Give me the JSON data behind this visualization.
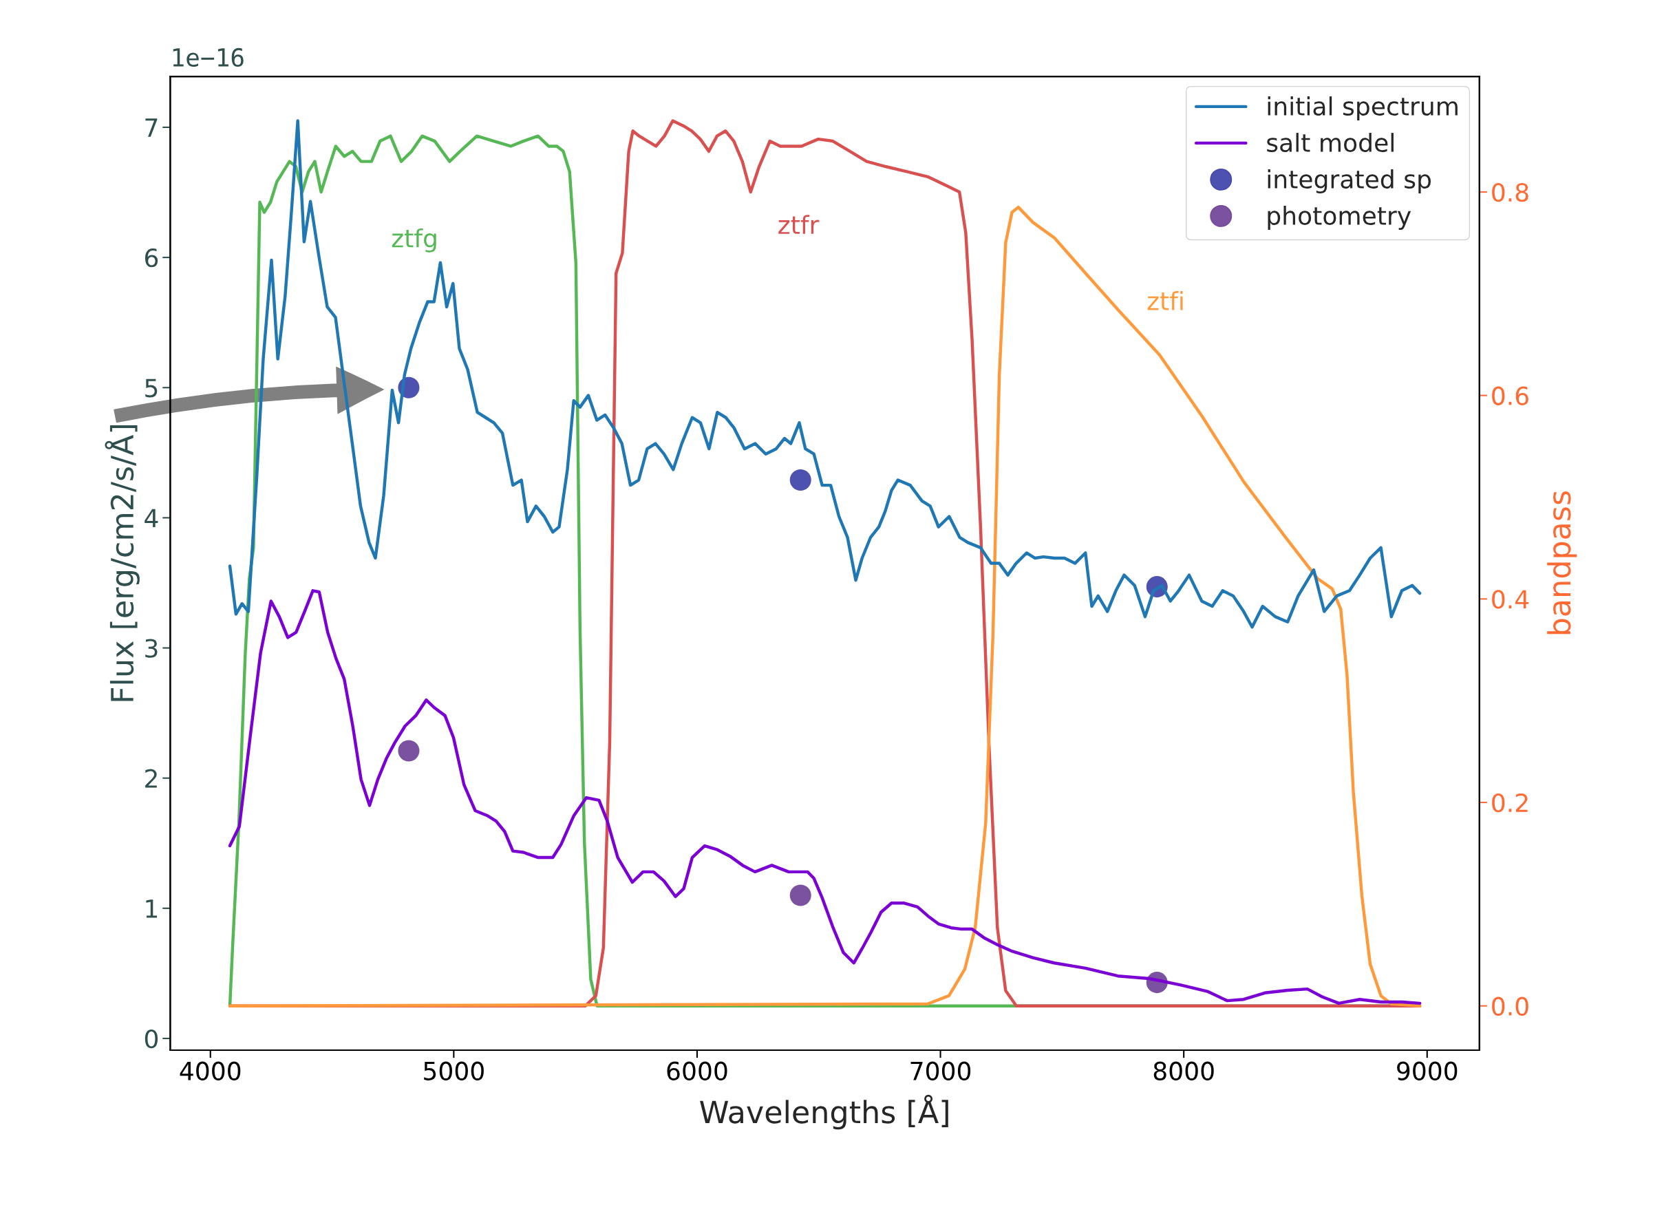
{
  "chart_data": {
    "type": "line",
    "xlabel": "Wavelengths [Å]",
    "ylabel": "Flux [erg/cm2/s/Å]",
    "y2label": "bandpass",
    "xlim": [
      3835,
      9215
    ],
    "xticks": [
      4000,
      5000,
      6000,
      7000,
      8000,
      9000
    ],
    "ylim": [
      -0.09,
      7.39
    ],
    "yticks": [
      0,
      1,
      2,
      3,
      4,
      5,
      6,
      7
    ],
    "y2lim": [
      -0.0435,
      0.9135
    ],
    "y2ticks": [
      {
        "value": 0,
        "label": "0.0"
      },
      0.2,
      0.4,
      0.6,
      0.8
    ],
    "legend": "top right",
    "marker": "none",
    "line_style": "solid",
    "annotations": [
      "1e−16"
    ],
    "series": [
      {
        "name": "initial spectrum",
        "color": "#1f77b4",
        "x": [
          4080,
          4105,
          4130,
          4156,
          4191,
          4217,
          4251,
          4277,
          4307,
          4333,
          4359,
          4385,
          4411,
          4445,
          4480,
          4514,
          4548,
          4583,
          4617,
          4652,
          4678,
          4712,
          4747,
          4773,
          4798,
          4824,
          4859,
          4893,
          4919,
          4945,
          4971,
          4997,
          5023,
          5057,
          5097,
          5131,
          5165,
          5200,
          5243,
          5278,
          5303,
          5338,
          5372,
          5407,
          5433,
          5467,
          5493,
          5519,
          5553,
          5588,
          5622,
          5657,
          5691,
          5726,
          5760,
          5795,
          5829,
          5864,
          5902,
          5937,
          5980,
          6014,
          6049,
          6083,
          6118,
          6152,
          6195,
          6239,
          6282,
          6325,
          6359,
          6385,
          6420,
          6445,
          6480,
          6514,
          6549,
          6583,
          6618,
          6652,
          6678,
          6713,
          6747,
          6773,
          6799,
          6825,
          6876,
          6924,
          6958,
          6992,
          7036,
          7079,
          7113,
          7165,
          7208,
          7242,
          7277,
          7311,
          7354,
          7389,
          7423,
          7467,
          7510,
          7553,
          7596,
          7622,
          7648,
          7686,
          7721,
          7755,
          7798,
          7841,
          7876,
          7910,
          7945,
          7979,
          8022,
          8074,
          8117,
          8160,
          8203,
          8246,
          8281,
          8324,
          8376,
          8427,
          8470,
          8534,
          8577,
          8629,
          8681,
          8723,
          8766,
          8810,
          8853,
          8896,
          8939,
          8970
        ],
        "values": [
          3.63,
          3.26,
          3.34,
          3.28,
          4.33,
          5.22,
          5.98,
          5.22,
          5.7,
          6.35,
          7.05,
          6.12,
          6.43,
          6.02,
          5.62,
          5.54,
          5.06,
          4.57,
          4.09,
          3.81,
          3.69,
          4.17,
          4.98,
          4.73,
          5.1,
          5.3,
          5.5,
          5.66,
          5.66,
          5.96,
          5.62,
          5.8,
          5.3,
          5.14,
          4.81,
          4.77,
          4.73,
          4.65,
          4.25,
          4.29,
          3.97,
          4.09,
          4.01,
          3.89,
          3.93,
          4.37,
          4.9,
          4.85,
          4.94,
          4.75,
          4.79,
          4.69,
          4.57,
          4.25,
          4.29,
          4.53,
          4.57,
          4.49,
          4.37,
          4.57,
          4.77,
          4.73,
          4.53,
          4.81,
          4.77,
          4.69,
          4.53,
          4.57,
          4.49,
          4.53,
          4.61,
          4.57,
          4.73,
          4.53,
          4.49,
          4.25,
          4.25,
          4.01,
          3.85,
          3.52,
          3.69,
          3.85,
          3.93,
          4.05,
          4.21,
          4.29,
          4.25,
          4.13,
          4.09,
          3.93,
          4.01,
          3.85,
          3.81,
          3.77,
          3.65,
          3.65,
          3.56,
          3.65,
          3.73,
          3.69,
          3.7,
          3.69,
          3.69,
          3.65,
          3.73,
          3.32,
          3.4,
          3.28,
          3.44,
          3.56,
          3.48,
          3.24,
          3.44,
          3.48,
          3.36,
          3.44,
          3.56,
          3.36,
          3.32,
          3.44,
          3.4,
          3.28,
          3.16,
          3.32,
          3.24,
          3.2,
          3.4,
          3.6,
          3.28,
          3.4,
          3.44,
          3.56,
          3.69,
          3.77,
          3.24,
          3.44,
          3.48,
          3.42
        ]
      },
      {
        "name": "salt model",
        "color": "#7b00d4",
        "x": [
          4080,
          4119,
          4163,
          4206,
          4249,
          4283,
          4318,
          4352,
          4387,
          4421,
          4447,
          4482,
          4516,
          4550,
          4585,
          4619,
          4654,
          4688,
          4723,
          4757,
          4800,
          4844,
          4887,
          4921,
          4964,
          4999,
          5042,
          5088,
          5140,
          5174,
          5209,
          5243,
          5286,
          5347,
          5407,
          5441,
          5493,
          5545,
          5597,
          5631,
          5674,
          5734,
          5778,
          5821,
          5864,
          5911,
          5945,
          5980,
          6031,
          6083,
          6135,
          6187,
          6238,
          6307,
          6376,
          6454,
          6480,
          6514,
          6557,
          6601,
          6644,
          6678,
          6713,
          6756,
          6799,
          6851,
          6906,
          6949,
          6992,
          7044,
          7087,
          7130,
          7182,
          7234,
          7294,
          7380,
          7467,
          7596,
          7729,
          7859,
          7988,
          8100,
          8178,
          8246,
          8333,
          8427,
          8508,
          8569,
          8637,
          8723,
          8810,
          8896,
          8970
        ],
        "values": [
          1.48,
          1.63,
          2.31,
          2.96,
          3.36,
          3.24,
          3.08,
          3.12,
          3.28,
          3.44,
          3.43,
          3.12,
          2.92,
          2.76,
          2.4,
          1.99,
          1.79,
          1.99,
          2.15,
          2.27,
          2.4,
          2.48,
          2.6,
          2.54,
          2.48,
          2.31,
          1.95,
          1.75,
          1.71,
          1.67,
          1.59,
          1.44,
          1.43,
          1.39,
          1.39,
          1.49,
          1.71,
          1.85,
          1.83,
          1.67,
          1.39,
          1.2,
          1.28,
          1.28,
          1.21,
          1.09,
          1.15,
          1.39,
          1.48,
          1.45,
          1.4,
          1.33,
          1.28,
          1.33,
          1.28,
          1.28,
          1.23,
          1.08,
          0.86,
          0.66,
          0.58,
          0.69,
          0.81,
          0.97,
          1.04,
          1.04,
          1.01,
          0.94,
          0.88,
          0.85,
          0.84,
          0.84,
          0.77,
          0.72,
          0.67,
          0.62,
          0.58,
          0.54,
          0.48,
          0.46,
          0.41,
          0.36,
          0.29,
          0.3,
          0.35,
          0.37,
          0.38,
          0.32,
          0.27,
          0.3,
          0.28,
          0.28,
          0.27
        ]
      },
      {
        "name": "integrated sp",
        "type": "scatter",
        "marker": "circle",
        "color": "#3a3fa8",
        "x": [
          4815,
          6425,
          7890
        ],
        "values": [
          5.0,
          4.29,
          3.47
        ]
      },
      {
        "name": "photometry",
        "type": "scatter",
        "marker": "circle",
        "color": "#6b3f95",
        "x": [
          4815,
          6425,
          7890
        ],
        "values": [
          2.21,
          1.1,
          0.43
        ]
      },
      {
        "name": "ztfg",
        "axis": "y2",
        "color": "#55b855",
        "x": [
          4080,
          4091,
          4117,
          4143,
          4160,
          4177,
          4203,
          4221,
          4247,
          4273,
          4299,
          4325,
          4351,
          4377,
          4403,
          4429,
          4455,
          4481,
          4515,
          4550,
          4584,
          4619,
          4662,
          4697,
          4740,
          4784,
          4827,
          4870,
          4922,
          4983,
          5026,
          5095,
          5165,
          5234,
          5286,
          5346,
          5390,
          5424,
          5450,
          5476,
          5502,
          5519,
          5537,
          5563,
          5589,
          8970
        ],
        "values": [
          0,
          0.057,
          0.18,
          0.345,
          0.42,
          0.45,
          0.79,
          0.78,
          0.79,
          0.81,
          0.82,
          0.83,
          0.825,
          0.8,
          0.82,
          0.83,
          0.8,
          0.82,
          0.845,
          0.835,
          0.84,
          0.83,
          0.83,
          0.85,
          0.855,
          0.83,
          0.84,
          0.855,
          0.85,
          0.83,
          0.84,
          0.855,
          0.85,
          0.845,
          0.85,
          0.855,
          0.845,
          0.845,
          0.84,
          0.82,
          0.73,
          0.37,
          0.16,
          0.026,
          0,
          0
        ]
      },
      {
        "name": "ztfr",
        "axis": "y2",
        "color": "#d95050",
        "x": [
          4080,
          5541,
          5584,
          5615,
          5641,
          5667,
          5693,
          5719,
          5736,
          5762,
          5797,
          5831,
          5866,
          5900,
          5944,
          5978,
          6013,
          6048,
          6082,
          6117,
          6151,
          6186,
          6220,
          6255,
          6299,
          6342,
          6429,
          6498,
          6558,
          6628,
          6697,
          6775,
          6862,
          6948,
          7035,
          7078,
          7104,
          7130,
          7165,
          7199,
          7234,
          7268,
          7312,
          8970
        ],
        "values": [
          0,
          0,
          0.01,
          0.057,
          0.26,
          0.72,
          0.74,
          0.84,
          0.86,
          0.855,
          0.85,
          0.845,
          0.855,
          0.87,
          0.865,
          0.86,
          0.852,
          0.84,
          0.855,
          0.86,
          0.85,
          0.83,
          0.8,
          0.825,
          0.85,
          0.845,
          0.845,
          0.852,
          0.85,
          0.84,
          0.83,
          0.825,
          0.82,
          0.815,
          0.805,
          0.8,
          0.76,
          0.655,
          0.47,
          0.26,
          0.077,
          0.015,
          0,
          0
        ]
      },
      {
        "name": "ztfi",
        "axis": "y2",
        "color": "#ff9a3c",
        "x": [
          4080,
          6948,
          7035,
          7100,
          7143,
          7186,
          7216,
          7242,
          7268,
          7294,
          7320,
          7381,
          7468,
          7597,
          7727,
          7900,
          8074,
          8247,
          8420,
          8550,
          8610,
          8645,
          8671,
          8697,
          8732,
          8766,
          8810,
          8853,
          8970
        ],
        "values": [
          0,
          0.002,
          0.01,
          0.036,
          0.077,
          0.18,
          0.366,
          0.62,
          0.75,
          0.78,
          0.785,
          0.77,
          0.755,
          0.72,
          0.685,
          0.64,
          0.58,
          0.515,
          0.46,
          0.42,
          0.41,
          0.39,
          0.325,
          0.21,
          0.108,
          0.041,
          0.01,
          0.002,
          0
        ]
      }
    ]
  }
}
